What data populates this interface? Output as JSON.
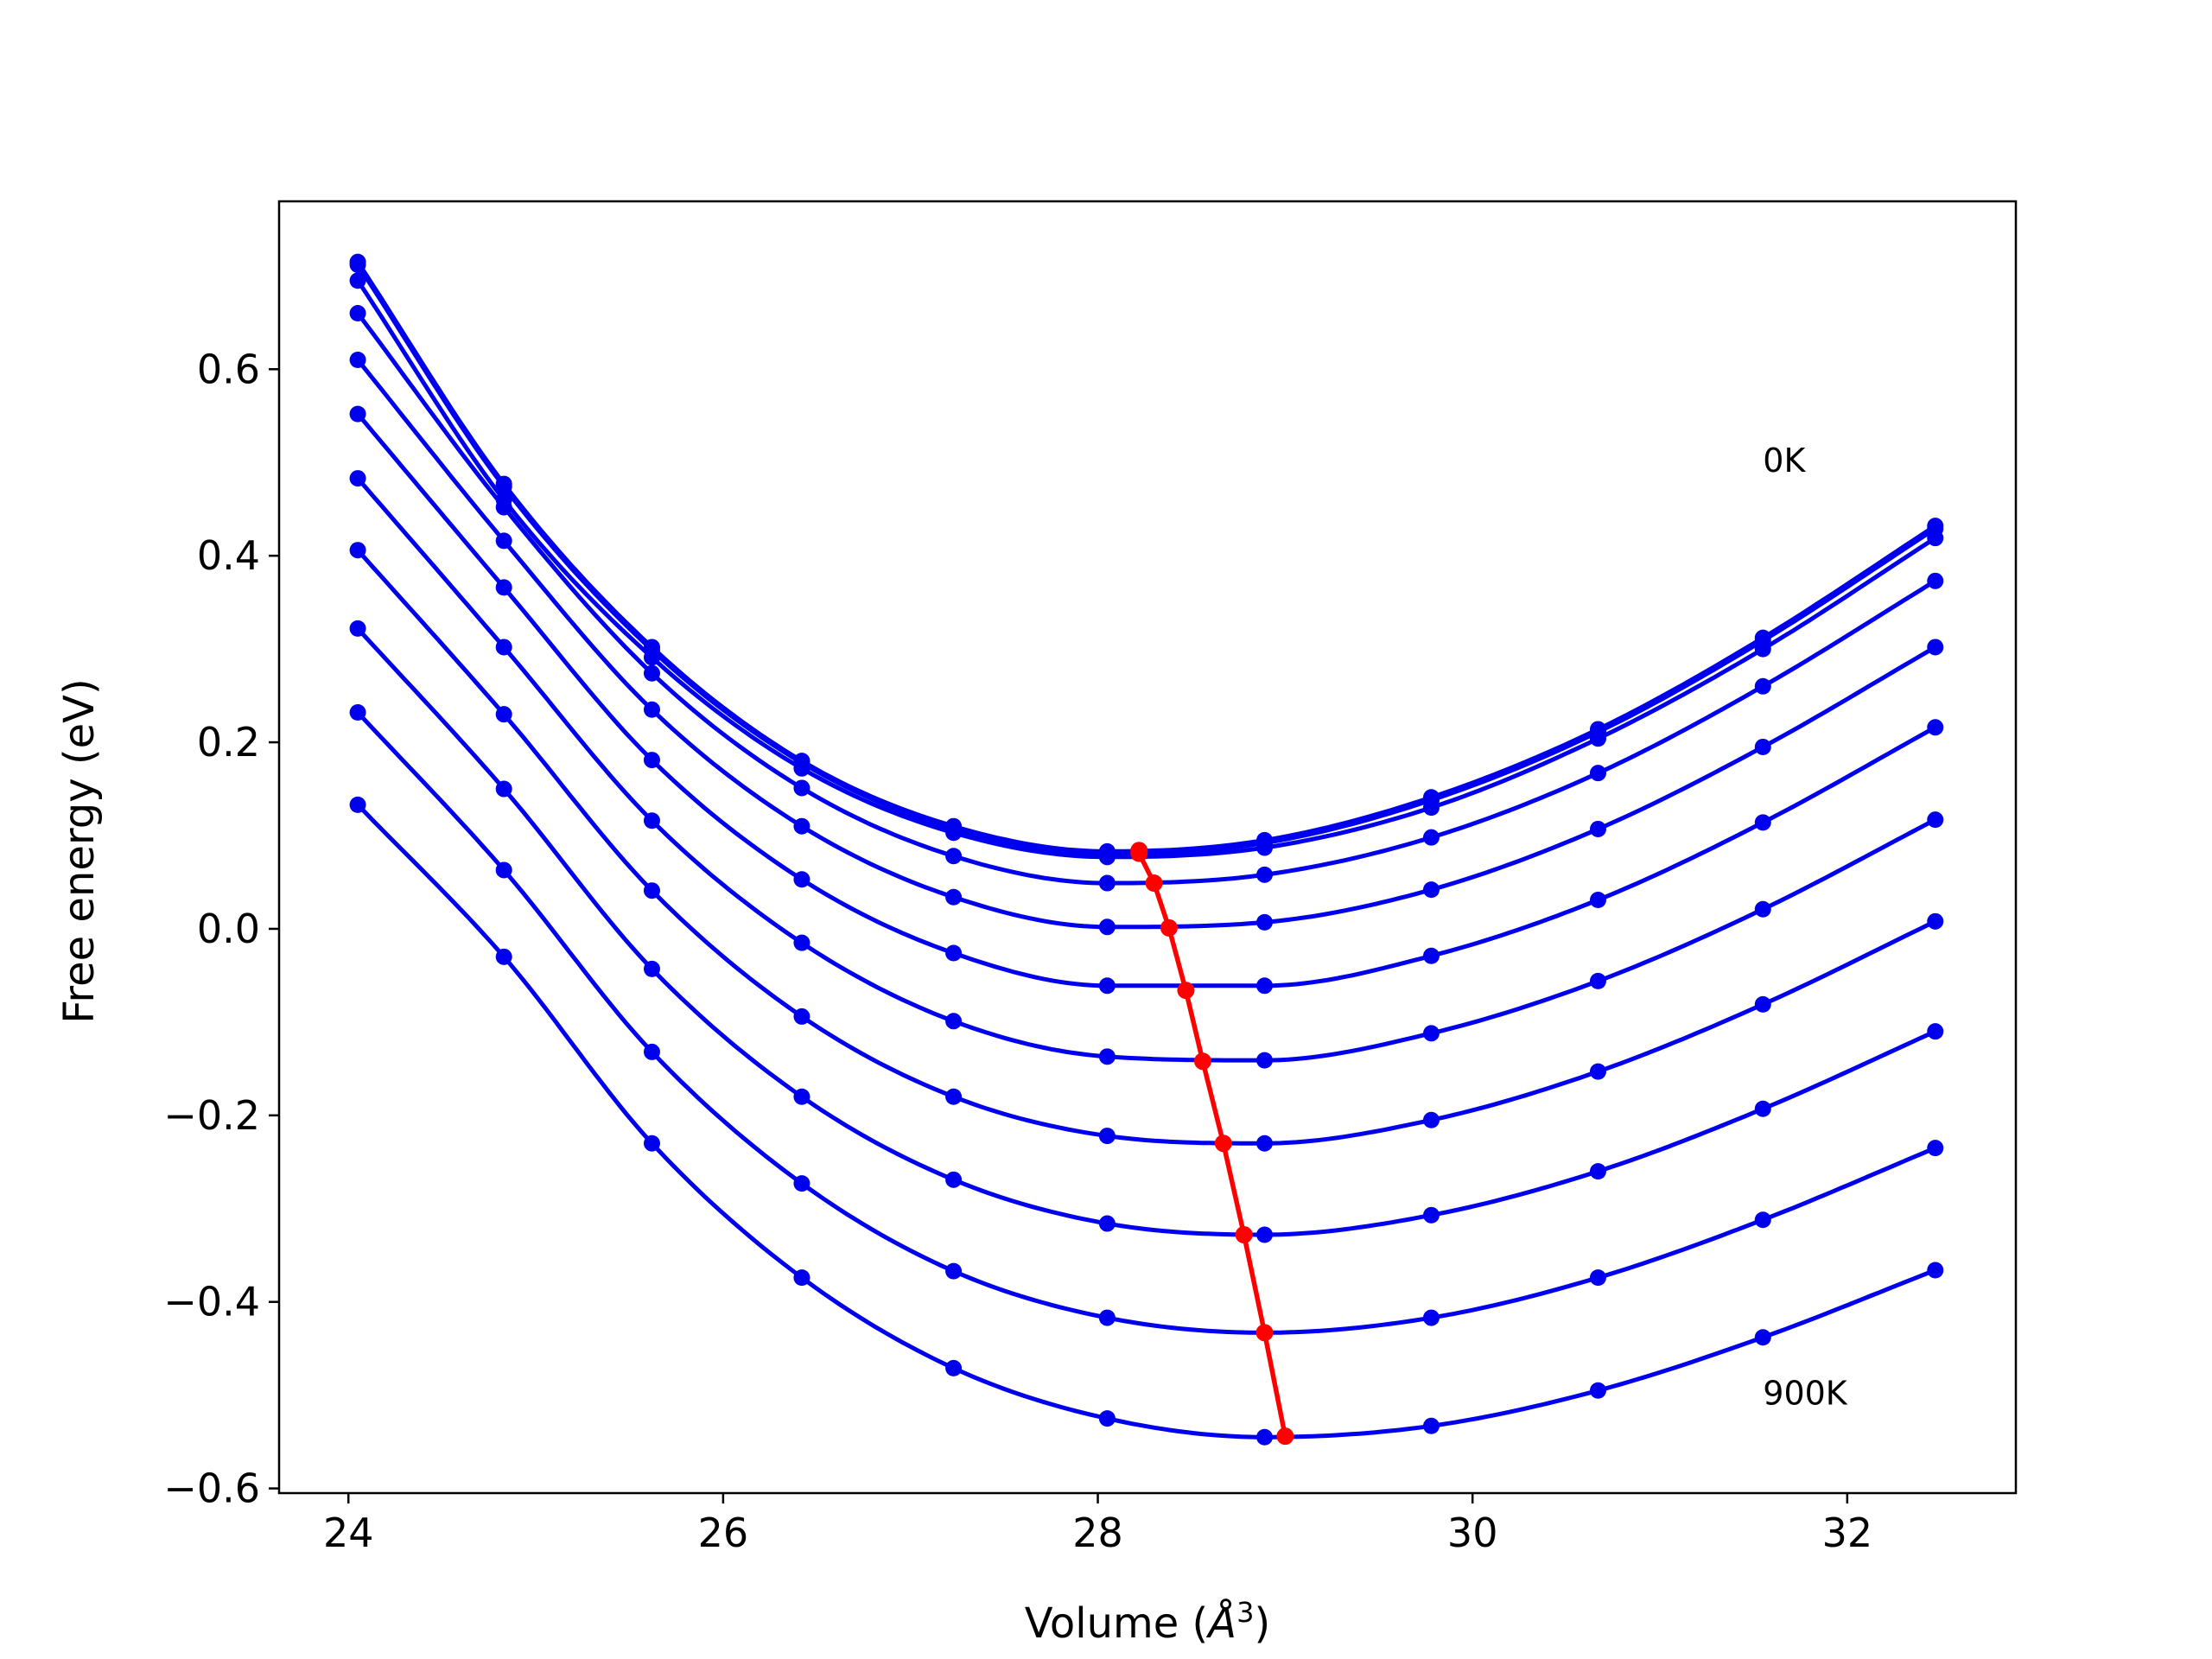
{
  "chart_data": {
    "type": "line",
    "xlabel": "Volume (Å³)",
    "xlabel_parts": {
      "prefix": "Volume (",
      "unit_base": "Å",
      "unit_exp": "3",
      "suffix": ")"
    },
    "ylabel": "Free energy (eV)",
    "xlim": [
      23.63,
      32.9
    ],
    "ylim": [
      -0.605,
      0.78
    ],
    "xticks": [
      24,
      26,
      28,
      30,
      32
    ],
    "xtick_labels": [
      "24",
      "26",
      "28",
      "30",
      "32"
    ],
    "yticks": [
      0.6,
      0.4,
      0.2,
      0.0,
      -0.2,
      -0.4,
      -0.6
    ],
    "ytick_labels": [
      "0.6",
      "0.4",
      "0.2",
      "0.0",
      "−0.2",
      "−0.4",
      "−0.6"
    ],
    "grid": false,
    "annotations": [
      {
        "text": "0K",
        "x": 31.55,
        "y": 0.49
      },
      {
        "text": "900K",
        "x": 31.55,
        "y": -0.51
      }
    ],
    "sample_volumes": [
      24.05,
      24.83,
      25.62,
      26.42,
      27.23,
      28.05,
      28.89,
      29.78,
      30.67,
      31.55,
      32.47
    ],
    "series": [
      {
        "values": [
          0.715,
          0.477,
          0.302,
          0.18,
          0.11,
          0.083,
          0.095,
          0.141,
          0.214,
          0.312,
          0.432
        ],
        "color": "#0000ee"
      },
      {
        "values": [
          0.712,
          0.474,
          0.299,
          0.178,
          0.107,
          0.08,
          0.092,
          0.138,
          0.211,
          0.309,
          0.429
        ],
        "color": "#0000ee"
      },
      {
        "values": [
          0.695,
          0.46,
          0.291,
          0.172,
          0.103,
          0.077,
          0.087,
          0.13,
          0.204,
          0.3,
          0.419
        ],
        "color": "#0000ee"
      },
      {
        "values": [
          0.66,
          0.452,
          0.274,
          0.151,
          0.078,
          0.049,
          0.058,
          0.098,
          0.167,
          0.26,
          0.373
        ],
        "color": "#0000ee"
      },
      {
        "values": [
          0.61,
          0.416,
          0.235,
          0.11,
          0.034,
          0.002,
          0.007,
          0.042,
          0.107,
          0.195,
          0.302
        ],
        "color": "#0000ee"
      },
      {
        "values": [
          0.552,
          0.366,
          0.181,
          0.053,
          -0.026,
          -0.061,
          -0.061,
          -0.029,
          0.031,
          0.114,
          0.216
        ],
        "color": "#0000ee"
      },
      {
        "values": [
          0.483,
          0.302,
          0.116,
          -0.015,
          -0.099,
          -0.137,
          -0.141,
          -0.112,
          -0.056,
          0.021,
          0.117
        ],
        "color": "#0000ee"
      },
      {
        "values": [
          0.406,
          0.23,
          0.041,
          -0.094,
          -0.18,
          -0.222,
          -0.23,
          -0.205,
          -0.153,
          -0.081,
          0.008
        ],
        "color": "#0000ee"
      },
      {
        "values": [
          0.322,
          0.15,
          -0.043,
          -0.18,
          -0.269,
          -0.316,
          -0.328,
          -0.307,
          -0.26,
          -0.193,
          -0.11
        ],
        "color": "#0000ee"
      },
      {
        "values": [
          0.232,
          0.063,
          -0.132,
          -0.273,
          -0.367,
          -0.417,
          -0.433,
          -0.417,
          -0.374,
          -0.312,
          -0.235
        ],
        "color": "#0000ee"
      },
      {
        "values": [
          0.133,
          -0.03,
          -0.23,
          -0.374,
          -0.471,
          -0.525,
          -0.545,
          -0.533,
          -0.495,
          -0.438,
          -0.366
        ],
        "color": "#0000ee"
      }
    ],
    "minima_line": {
      "color": "#ff0000",
      "x": [
        28.22,
        28.22,
        28.3,
        28.38,
        28.47,
        28.56,
        28.67,
        28.78,
        28.89,
        29.0
      ],
      "y": [
        0.084,
        0.081,
        0.049,
        0.001,
        -0.066,
        -0.142,
        -0.23,
        -0.328,
        -0.433,
        -0.544
      ]
    }
  }
}
